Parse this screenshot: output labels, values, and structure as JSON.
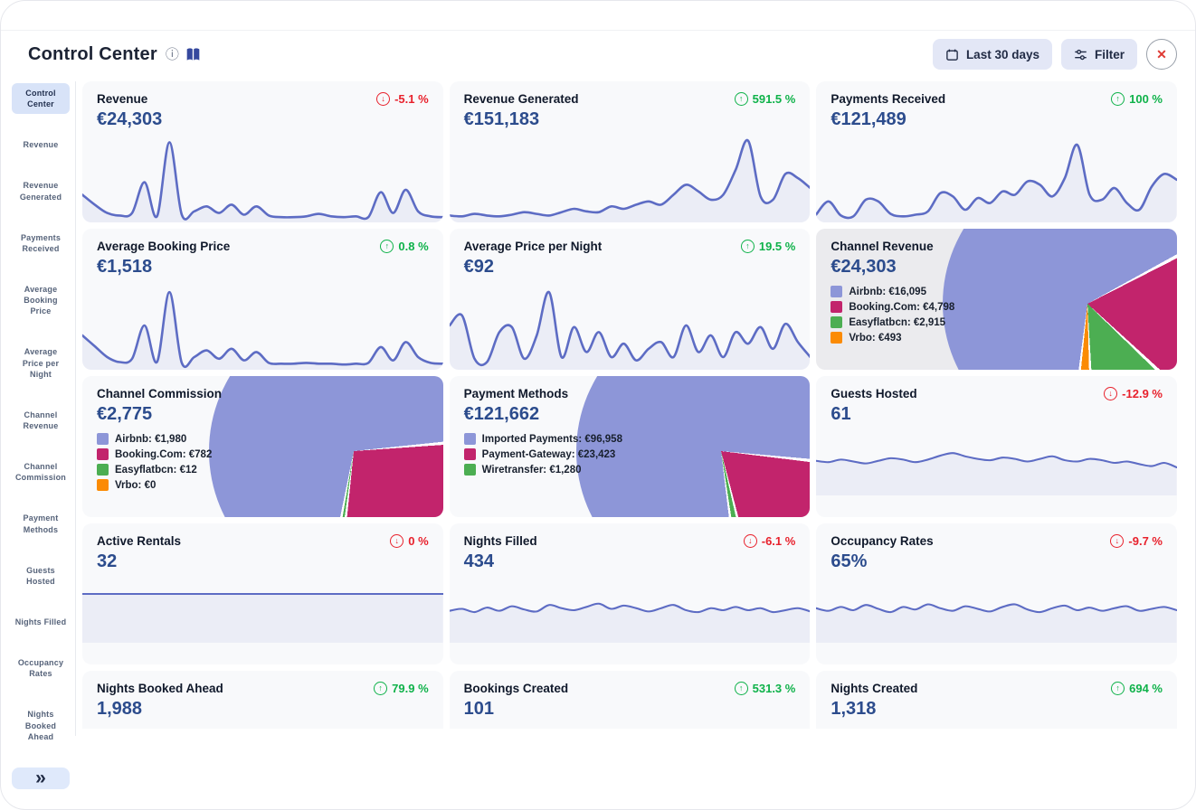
{
  "header": {
    "title": "Control Center",
    "date_range_label": "Last 30 days",
    "filter_label": "Filter"
  },
  "sidebar": {
    "items": [
      {
        "label": "Control Center",
        "active": true
      },
      {
        "label": "Revenue",
        "active": false
      },
      {
        "label": "Revenue Generated",
        "active": false
      },
      {
        "label": "Payments Received",
        "active": false
      },
      {
        "label": "Average Booking Price",
        "active": false
      },
      {
        "label": "Average Price per Night",
        "active": false
      },
      {
        "label": "Channel Revenue",
        "active": false
      },
      {
        "label": "Channel Commission",
        "active": false
      },
      {
        "label": "Payment Methods",
        "active": false
      },
      {
        "label": "Guests Hosted",
        "active": false
      },
      {
        "label": "Nights Filled",
        "active": false
      },
      {
        "label": "Occupancy Rates",
        "active": false
      },
      {
        "label": "Nights Booked Ahead",
        "active": false
      }
    ],
    "collapse_label": "»"
  },
  "colors": {
    "spark_line": "#5d6cc4",
    "spark_fill": "rgba(93,108,196,0.08)",
    "purple": "#8d96d8",
    "pink": "#c2246c",
    "green": "#4cae52",
    "orange": "#fb8b04",
    "up": "#0fb24a",
    "down": "#e8212c"
  },
  "cards": [
    {
      "title": "Revenue",
      "value": "€24,303",
      "change": "-5.1 %",
      "direction": "down",
      "spark": [
        0.3,
        0.18,
        0.08,
        0.05,
        0.08,
        0.45,
        0.04,
        0.93,
        0.06,
        0.1,
        0.16,
        0.08,
        0.18,
        0.06,
        0.16,
        0.05,
        0.03,
        0.03,
        0.04,
        0.07,
        0.04,
        0.03,
        0.04,
        0.03,
        0.33,
        0.08,
        0.36,
        0.1,
        0.04,
        0.03
      ]
    },
    {
      "title": "Revenue Generated",
      "value": "€151,183",
      "change": "591.5 %",
      "direction": "up",
      "spark": [
        0.05,
        0.04,
        0.07,
        0.05,
        0.04,
        0.06,
        0.09,
        0.07,
        0.05,
        0.09,
        0.13,
        0.1,
        0.09,
        0.16,
        0.13,
        0.18,
        0.22,
        0.18,
        0.3,
        0.42,
        0.34,
        0.24,
        0.3,
        0.6,
        0.95,
        0.28,
        0.24,
        0.55,
        0.5,
        0.38
      ]
    },
    {
      "title": "Payments Received",
      "value": "€121,489",
      "change": "100 %",
      "direction": "up",
      "spark": [
        0.06,
        0.22,
        0.05,
        0.04,
        0.24,
        0.22,
        0.07,
        0.04,
        0.06,
        0.1,
        0.32,
        0.28,
        0.12,
        0.26,
        0.2,
        0.34,
        0.3,
        0.46,
        0.42,
        0.28,
        0.5,
        0.9,
        0.3,
        0.24,
        0.38,
        0.2,
        0.12,
        0.4,
        0.55,
        0.48
      ]
    },
    {
      "title": "Average Booking Price",
      "value": "€1,518",
      "change": "0.8 %",
      "direction": "up",
      "spark": [
        0.38,
        0.25,
        0.12,
        0.06,
        0.1,
        0.5,
        0.06,
        0.9,
        0.05,
        0.12,
        0.2,
        0.1,
        0.22,
        0.08,
        0.18,
        0.05,
        0.04,
        0.04,
        0.05,
        0.04,
        0.04,
        0.03,
        0.04,
        0.05,
        0.24,
        0.08,
        0.3,
        0.12,
        0.05,
        0.04
      ]
    },
    {
      "title": "Average Price per Night",
      "value": "€92",
      "change": "19.5 %",
      "direction": "up",
      "spark": [
        0.5,
        0.62,
        0.1,
        0.06,
        0.42,
        0.48,
        0.1,
        0.38,
        0.9,
        0.12,
        0.48,
        0.18,
        0.42,
        0.12,
        0.28,
        0.08,
        0.22,
        0.3,
        0.12,
        0.5,
        0.18,
        0.38,
        0.12,
        0.42,
        0.28,
        0.48,
        0.22,
        0.52,
        0.3,
        0.12
      ]
    },
    {
      "title": "Channel Revenue",
      "value": "€24,303",
      "highlighted": true,
      "legend": [
        {
          "name": "Airbnb",
          "value": "€16,095",
          "color": "#8d96d8"
        },
        {
          "name": "Booking.Com",
          "value": "€4,798",
          "color": "#c2246c"
        },
        {
          "name": "Easyflatbcn",
          "value": "€2,915",
          "color": "#4cae52"
        },
        {
          "name": "Vrbo",
          "value": "€493",
          "color": "#fb8b04"
        }
      ],
      "pie": {
        "start": 61,
        "slices": [
          {
            "color": "#c2246c",
            "frac": 0.197
          },
          {
            "color": "#4cae52",
            "frac": 0.12
          },
          {
            "color": "#fb8b04",
            "frac": 0.02
          },
          {
            "color": "#8d96d8",
            "frac": 0.662
          }
        ]
      }
    },
    {
      "title": "Channel Commission",
      "value": "€2,775",
      "legend": [
        {
          "name": "Airbnb",
          "value": "€1,980",
          "color": "#8d96d8"
        },
        {
          "name": "Booking.Com",
          "value": "€782",
          "color": "#c2246c"
        },
        {
          "name": "Easyflatbcn",
          "value": "€12",
          "color": "#4cae52"
        },
        {
          "name": "Vrbo",
          "value": "€0",
          "color": "#fb8b04"
        }
      ],
      "pie": {
        "start": 84,
        "slices": [
          {
            "color": "#c2246c",
            "frac": 0.282
          },
          {
            "color": "#4cae52",
            "frac": 0.005
          },
          {
            "color": "#8d96d8",
            "frac": 0.713
          }
        ]
      }
    },
    {
      "title": "Payment Methods",
      "value": "€121,662",
      "legend": [
        {
          "name": "Imported Payments",
          "value": "€96,958",
          "color": "#8d96d8"
        },
        {
          "name": "Payment-Gateway",
          "value": "€23,423",
          "color": "#c2246c"
        },
        {
          "name": "Wiretransfer",
          "value": "€1,280",
          "color": "#4cae52"
        }
      ],
      "pie": {
        "start": 95,
        "slices": [
          {
            "color": "#c2246c",
            "frac": 0.193
          },
          {
            "color": "#4cae52",
            "frac": 0.011
          },
          {
            "color": "#8d96d8",
            "frac": 0.796
          }
        ]
      }
    },
    {
      "title": "Guests Hosted",
      "value": "61",
      "change": "-12.9 %",
      "direction": "down",
      "spark": [
        0.5,
        0.48,
        0.52,
        0.49,
        0.46,
        0.5,
        0.54,
        0.52,
        0.48,
        0.52,
        0.58,
        0.62,
        0.57,
        0.53,
        0.51,
        0.55,
        0.53,
        0.49,
        0.53,
        0.57,
        0.51,
        0.49,
        0.53,
        0.51,
        0.47,
        0.49,
        0.45,
        0.42,
        0.47,
        0.4
      ]
    },
    {
      "title": "Active Rentals",
      "value": "32",
      "change": "0 %",
      "direction": "down",
      "spark": [
        0.72,
        0.72,
        0.72,
        0.72,
        0.72,
        0.72,
        0.72,
        0.72,
        0.72,
        0.72,
        0.72,
        0.72,
        0.72,
        0.72,
        0.72,
        0.72,
        0.72,
        0.72,
        0.72,
        0.72,
        0.72,
        0.72,
        0.72,
        0.72,
        0.72,
        0.72,
        0.72,
        0.72,
        0.72,
        0.72
      ]
    },
    {
      "title": "Nights Filled",
      "value": "434",
      "change": "-6.1 %",
      "direction": "down",
      "spark": [
        0.46,
        0.49,
        0.44,
        0.51,
        0.46,
        0.53,
        0.48,
        0.45,
        0.55,
        0.5,
        0.47,
        0.52,
        0.57,
        0.49,
        0.54,
        0.5,
        0.45,
        0.5,
        0.55,
        0.47,
        0.44,
        0.5,
        0.47,
        0.52,
        0.47,
        0.5,
        0.44,
        0.47,
        0.5,
        0.45
      ]
    },
    {
      "title": "Occupancy Rates",
      "value": "65%",
      "change": "-9.7 %",
      "direction": "down",
      "spark": [
        0.5,
        0.46,
        0.52,
        0.47,
        0.55,
        0.49,
        0.44,
        0.52,
        0.48,
        0.56,
        0.5,
        0.46,
        0.53,
        0.49,
        0.45,
        0.52,
        0.56,
        0.48,
        0.44,
        0.5,
        0.54,
        0.47,
        0.51,
        0.46,
        0.5,
        0.53,
        0.46,
        0.49,
        0.52,
        0.47
      ]
    },
    {
      "title": "Nights Booked Ahead",
      "value": "1,988",
      "change": "79.9 %",
      "direction": "up"
    },
    {
      "title": "Bookings Created",
      "value": "101",
      "change": "531.3 %",
      "direction": "up"
    },
    {
      "title": "Nights Created",
      "value": "1,318",
      "change": "694 %",
      "direction": "up"
    }
  ]
}
